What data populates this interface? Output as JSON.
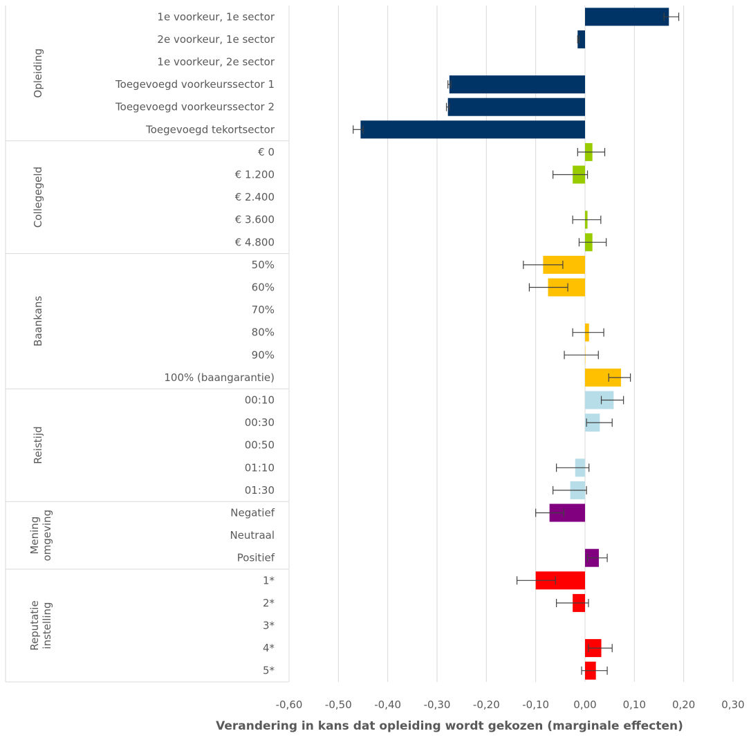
{
  "chart_data": {
    "type": "bar",
    "orientation": "horizontal",
    "xlabel": "Verandering in kans dat opleiding wordt gekozen (marginale effecten)",
    "xlim": [
      -0.6,
      0.3
    ],
    "xticks": [
      -0.6,
      -0.5,
      -0.4,
      -0.3,
      -0.2,
      -0.1,
      0.0,
      0.1,
      0.2,
      0.3
    ],
    "xtick_labels": [
      "-0,60",
      "-0,50",
      "-0,40",
      "-0,30",
      "-0,20",
      "-0,10",
      "0,00",
      "0,10",
      "0,20",
      "0,30"
    ],
    "grid": "vertical",
    "error_bars": true,
    "groups": [
      {
        "name": "Opleiding",
        "color": "#003366",
        "items": [
          {
            "label": "1e voorkeur, 1e sector",
            "value": 0.17,
            "err_low": 0.16,
            "err_high": 0.19
          },
          {
            "label": "2e voorkeur, 1e sector",
            "value": -0.015,
            "err_low": -0.015,
            "err_high": -0.012
          },
          {
            "label": "1e voorkeur, 2e sector",
            "value": null
          },
          {
            "label": "Toegevoegd voorkeurssector 1",
            "value": -0.275,
            "err_low": -0.278,
            "err_high": -0.272
          },
          {
            "label": "Toegevoegd voorkeurssector 2",
            "value": -0.278,
            "err_low": -0.281,
            "err_high": -0.275
          },
          {
            "label": "Toegevoegd tekortsector",
            "value": -0.455,
            "err_low": -0.47,
            "err_high": -0.45
          }
        ]
      },
      {
        "name": "Collegegeld",
        "color": "#99CC00",
        "items": [
          {
            "label": "€ 0",
            "value": 0.015,
            "err_low": -0.015,
            "err_high": 0.04
          },
          {
            "label": "€ 1.200",
            "value": -0.025,
            "err_low": -0.065,
            "err_high": 0.005
          },
          {
            "label": "€ 2.400",
            "value": null
          },
          {
            "label": "€ 3.600",
            "value": 0.005,
            "err_low": -0.025,
            "err_high": 0.032
          },
          {
            "label": "€ 4.800",
            "value": 0.015,
            "err_low": -0.012,
            "err_high": 0.043
          }
        ]
      },
      {
        "name": "Baankans",
        "color": "#FFC000",
        "items": [
          {
            "label": "50%",
            "value": -0.085,
            "err_low": -0.125,
            "err_high": -0.045
          },
          {
            "label": "60%",
            "value": -0.075,
            "err_low": -0.113,
            "err_high": -0.035
          },
          {
            "label": "70%",
            "value": null
          },
          {
            "label": "80%",
            "value": 0.008,
            "err_low": -0.025,
            "err_high": 0.038
          },
          {
            "label": "90%",
            "value": 0.0,
            "err_low": -0.042,
            "err_high": 0.027
          },
          {
            "label": "100% (baangarantie)",
            "value": 0.073,
            "err_low": 0.048,
            "err_high": 0.092
          }
        ]
      },
      {
        "name": "Reistijd",
        "color": "#B7DEE8",
        "items": [
          {
            "label": "00:10",
            "value": 0.058,
            "err_low": 0.033,
            "err_high": 0.078
          },
          {
            "label": "00:30",
            "value": 0.03,
            "err_low": 0.003,
            "err_high": 0.055
          },
          {
            "label": "00:50",
            "value": null
          },
          {
            "label": "01:10",
            "value": -0.02,
            "err_low": -0.058,
            "err_high": 0.008
          },
          {
            "label": "01:30",
            "value": -0.03,
            "err_low": -0.065,
            "err_high": 0.003
          }
        ]
      },
      {
        "name": "Mening omgeving",
        "name_lines": [
          "Mening",
          "omgeving"
        ],
        "color": "#800080",
        "items": [
          {
            "label": "Negatief",
            "value": -0.072,
            "err_low": -0.1,
            "err_high": -0.043
          },
          {
            "label": "Neutraal",
            "value": null
          },
          {
            "label": "Positief",
            "value": 0.028,
            "err_low": 0.005,
            "err_high": 0.045
          }
        ]
      },
      {
        "name": "Reputatie instelling",
        "name_lines": [
          "Reputatie",
          "instelling"
        ],
        "color": "#FF0000",
        "items": [
          {
            "label": "1*",
            "value": -0.1,
            "err_low": -0.138,
            "err_high": -0.06
          },
          {
            "label": "2*",
            "value": -0.025,
            "err_low": -0.058,
            "err_high": 0.007
          },
          {
            "label": "3*",
            "value": null
          },
          {
            "label": "4*",
            "value": 0.033,
            "err_low": 0.007,
            "err_high": 0.055
          },
          {
            "label": "5*",
            "value": 0.022,
            "err_low": -0.007,
            "err_high": 0.045
          }
        ]
      }
    ]
  }
}
